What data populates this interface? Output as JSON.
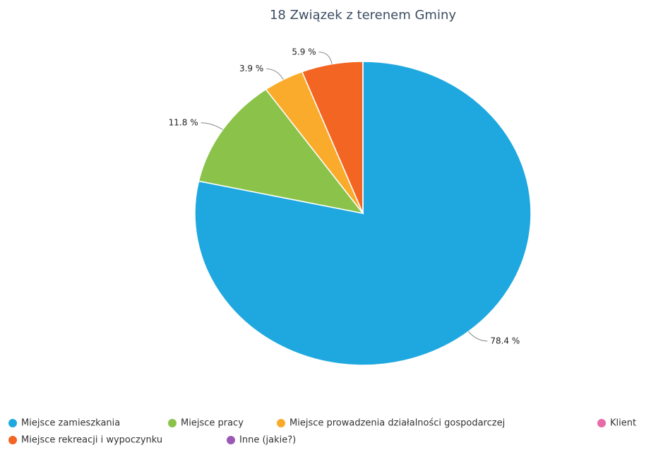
{
  "chart_data": {
    "type": "pie",
    "title": "18 Związek z terenem Gminy",
    "categories": [
      "Miejsce zamieszkania",
      "Miejsce pracy",
      "Miejsce prowadzenia działalności gospodarczej",
      "Klient",
      "Miejsce rekreacji i wypoczynku",
      "Inne (jakie?)"
    ],
    "values": [
      78.4,
      11.8,
      3.9,
      0,
      5.9,
      0
    ],
    "value_labels": [
      "78.4 %",
      "11.8 %",
      "3.9 %",
      null,
      "5.9 %",
      null
    ],
    "colors": [
      "#1fa8e0",
      "#8bc34a",
      "#fbab2b",
      "#e86aa8",
      "#f26522",
      "#9b59b6"
    ]
  }
}
